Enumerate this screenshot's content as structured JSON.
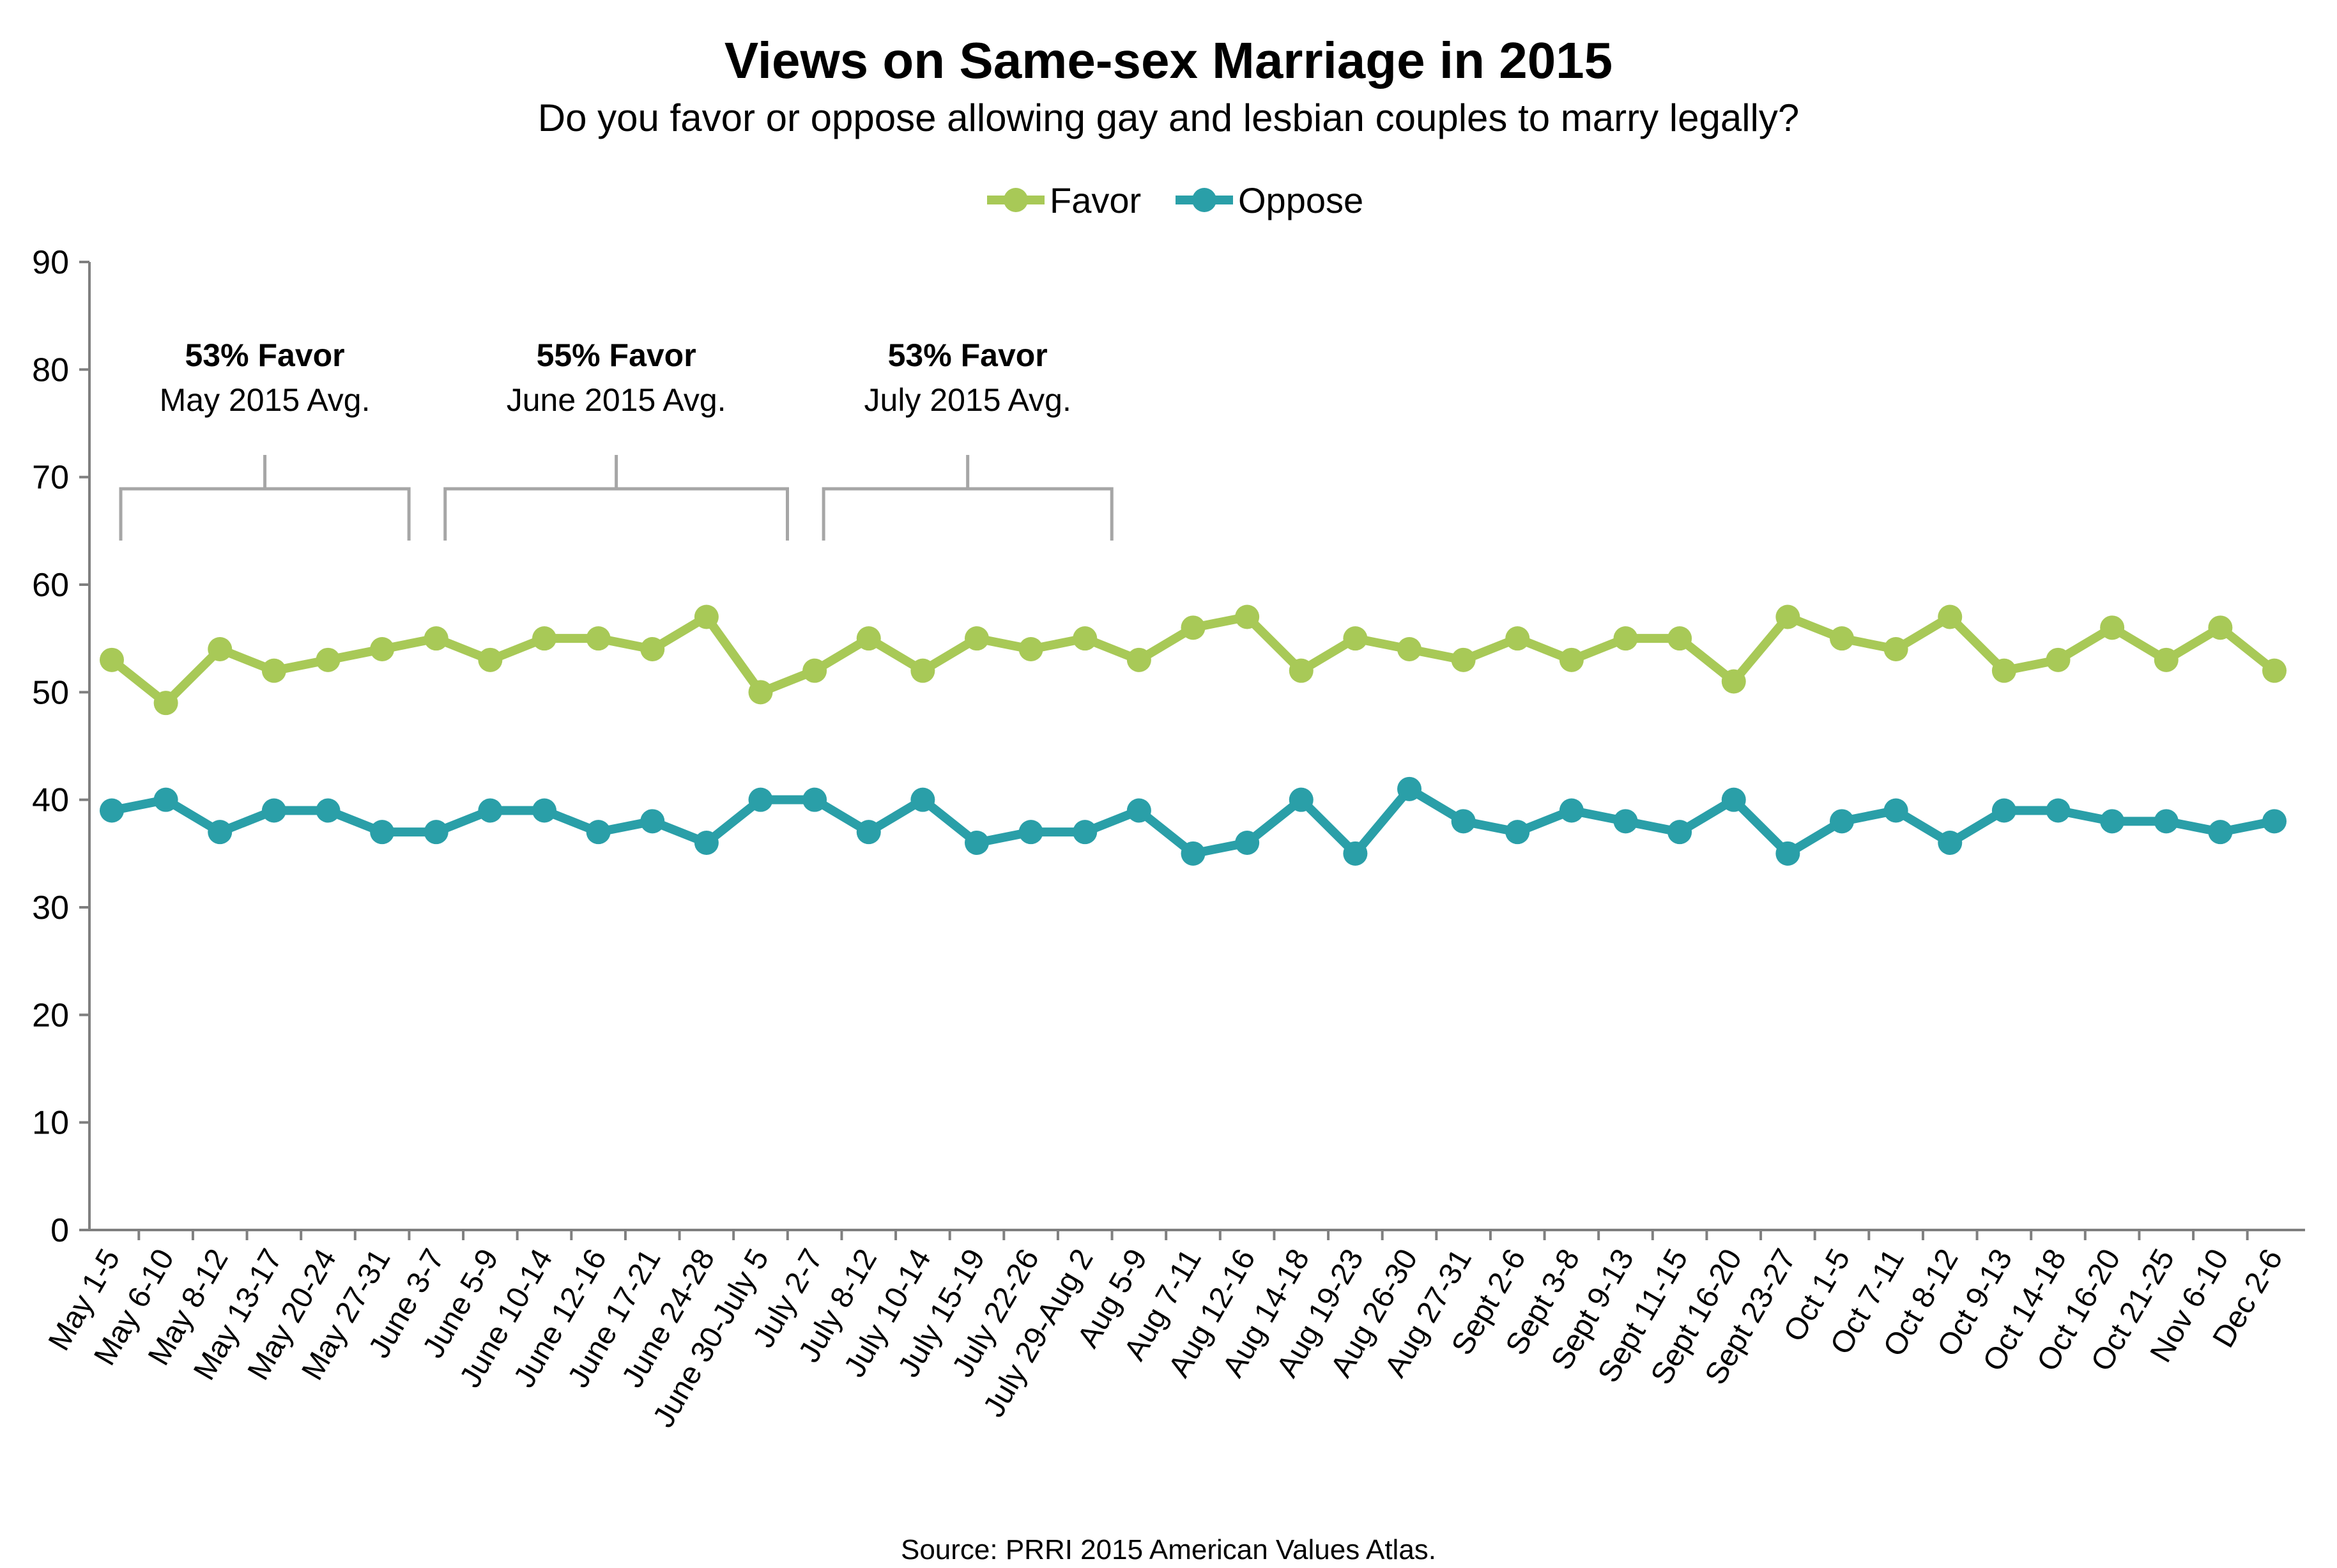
{
  "chart_data": {
    "type": "line",
    "title": "Views on Same-sex Marriage in 2015",
    "subtitle": "Do you favor or oppose allowing gay and lesbian couples to marry legally?",
    "xlabel": "",
    "ylabel": "",
    "ylim": [
      0,
      90
    ],
    "yticks": [
      0,
      10,
      20,
      30,
      40,
      50,
      60,
      70,
      80,
      90
    ],
    "grid": false,
    "legend_position": "top-center",
    "categories": [
      "May 1-5",
      "May 6-10",
      "May 8-12",
      "May 13-17",
      "May 20-24",
      "May 27-31",
      "June 3-7",
      "June 5-9",
      "June 10-14",
      "June 12-16",
      "June 17-21",
      "June 24-28",
      "June 30-July 5",
      "July 2-7",
      "July 8-12",
      "July 10-14",
      "July 15-19",
      "July 22-26",
      "July 29-Aug 2",
      "Aug 5-9",
      "Aug 7-11",
      "Aug 12-16",
      "Aug 14-18",
      "Aug 19-23",
      "Aug 26-30",
      "Aug 27-31",
      "Sept 2-6",
      "Sept 3-8",
      "Sept 9-13",
      "Sept 11-15",
      "Sept 16-20",
      "Sept 23-27",
      "Oct 1-5",
      "Oct 7-11",
      "Oct 8-12",
      "Oct 9-13",
      "Oct 14-18",
      "Oct 16-20",
      "Oct 21-25",
      "Nov 6-10",
      "Dec 2-6"
    ],
    "series": [
      {
        "name": "Favor",
        "color": "#a8c957",
        "values": [
          53,
          49,
          54,
          52,
          53,
          54,
          55,
          53,
          55,
          55,
          54,
          57,
          50,
          52,
          55,
          52,
          55,
          54,
          55,
          53,
          56,
          57,
          52,
          55,
          54,
          53,
          55,
          53,
          55,
          55,
          51,
          57,
          55,
          54,
          57,
          52,
          53,
          56,
          53,
          56,
          52
        ]
      },
      {
        "name": "Oppose",
        "color": "#2a9fa8",
        "values": [
          39,
          40,
          37,
          39,
          39,
          37,
          37,
          39,
          39,
          37,
          38,
          36,
          40,
          40,
          37,
          40,
          36,
          37,
          37,
          39,
          35,
          36,
          40,
          35,
          41,
          38,
          37,
          39,
          38,
          37,
          40,
          35,
          38,
          39,
          36,
          39,
          39,
          38,
          38,
          37,
          38
        ]
      }
    ],
    "annotations": [
      {
        "headline": "53% Favor",
        "subline": "May 2015 Avg.",
        "start": 0,
        "end": 5
      },
      {
        "headline": "55% Favor",
        "subline": "June 2015 Avg.",
        "start": 6,
        "end": 12
      },
      {
        "headline": "53% Favor",
        "subline": "July 2015 Avg.",
        "start": 13,
        "end": 18
      }
    ],
    "annotation_bracket_color": "#a6a6a6",
    "axis_color": "#7f7f7f"
  },
  "source": "Source: PRRI 2015 American Values Atlas."
}
